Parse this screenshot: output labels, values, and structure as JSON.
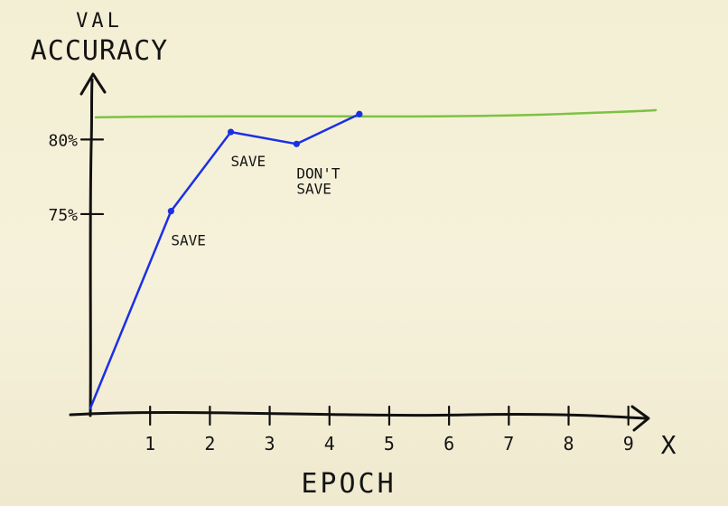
{
  "chart_data": {
    "type": "line",
    "title": "",
    "ylabel_lines": [
      "VAL",
      "ACCURACY"
    ],
    "xlabel": "EPOCH",
    "x_axis_end_label": "X",
    "x_ticks": [
      "1",
      "2",
      "3",
      "4",
      "5",
      "6",
      "7",
      "8",
      "9"
    ],
    "y_ticks": [
      {
        "label": "75%",
        "value": 75
      },
      {
        "label": "80%",
        "value": 80
      }
    ],
    "xlim": [
      0,
      10.5
    ],
    "ylim": [
      61.5,
      84.5
    ],
    "series": [
      {
        "color": "#1a2fe6",
        "points": [
          {
            "x": 0,
            "y": 62.0
          },
          {
            "x": 1.35,
            "y": 75.2
          },
          {
            "x": 2.35,
            "y": 80.5
          },
          {
            "x": 3.45,
            "y": 79.7
          },
          {
            "x": 4.5,
            "y": 81.7
          }
        ],
        "marked_points": [
          1,
          2,
          3,
          4
        ]
      }
    ],
    "reference_line": {
      "y": 81.6,
      "color": "#7dc242"
    },
    "annotations": [
      {
        "lines": [
          "SAVE"
        ],
        "x": 1.35,
        "y": 75.2
      },
      {
        "lines": [
          "SAVE"
        ],
        "x": 2.35,
        "y": 80.5
      },
      {
        "lines": [
          "DON'T",
          "SAVE"
        ],
        "x": 3.45,
        "y": 79.7
      }
    ],
    "grid": false,
    "legend": "none"
  }
}
